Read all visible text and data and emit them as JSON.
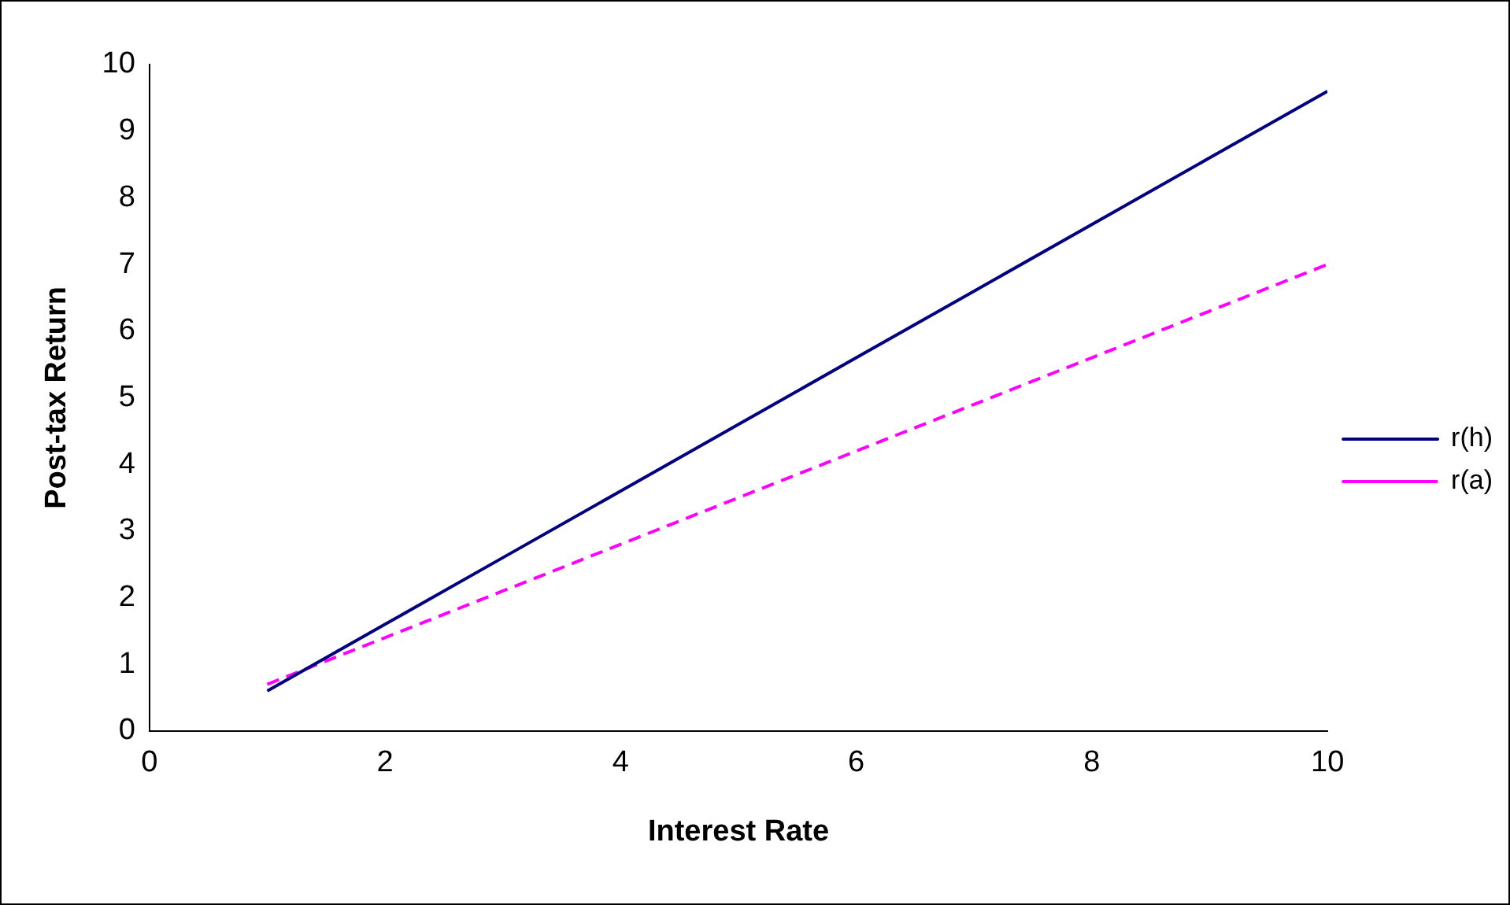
{
  "chart_data": {
    "type": "line",
    "xlabel": "Interest Rate",
    "ylabel": "Post-tax Return",
    "x": [
      1,
      2,
      3,
      4,
      5,
      6,
      7,
      8,
      9,
      10
    ],
    "series": [
      {
        "name": "r(h)",
        "color": "#000080",
        "line_style": "solid",
        "values": [
          0.6,
          1.6,
          2.6,
          3.6,
          4.6,
          5.6,
          6.6,
          7.6,
          8.6,
          9.6
        ]
      },
      {
        "name": "r(a)",
        "color": "#ff00ff",
        "line_style": "dashed",
        "values": [
          0.7,
          1.4,
          2.1,
          2.8,
          3.5,
          4.2,
          4.9,
          5.6,
          6.3,
          7.0
        ]
      }
    ],
    "xlim": [
      0,
      10
    ],
    "xticks": [
      0,
      2,
      4,
      6,
      8,
      10
    ],
    "ylim": [
      0,
      10
    ],
    "yticks": [
      0,
      1,
      2,
      3,
      4,
      5,
      6,
      7,
      8,
      9,
      10
    ],
    "grid": false,
    "legend": "right",
    "marker": "none"
  }
}
